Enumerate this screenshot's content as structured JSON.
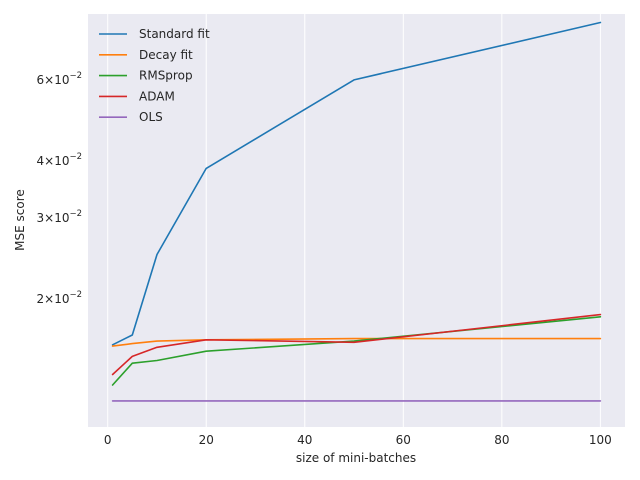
{
  "chart_data": {
    "type": "line",
    "xlabel": "size of mini-batches",
    "ylabel": "MSE score",
    "y_scale": "log",
    "grid": true,
    "legend_position": "top-left",
    "xlim": [
      -4,
      105
    ],
    "ylim": [
      0.01053,
      0.0835
    ],
    "x_ticks": [
      0,
      20,
      40,
      60,
      80,
      100
    ],
    "x_tick_labels": [
      "0",
      "20",
      "40",
      "60",
      "80",
      "100"
    ],
    "y_ticks": [
      0.02,
      0.03,
      0.04,
      0.06
    ],
    "y_tick_labels": [
      {
        "mantissa": "2",
        "exp": "−2"
      },
      {
        "mantissa": "3",
        "exp": "−2"
      },
      {
        "mantissa": "4",
        "exp": "−2"
      },
      {
        "mantissa": "6",
        "exp": "−2"
      }
    ],
    "x": [
      1,
      5,
      10,
      20,
      50,
      100
    ],
    "series": [
      {
        "name": "Standard fit",
        "color": "#1f77b4",
        "values": [
          0.0159,
          0.0167,
          0.025,
          0.0385,
          0.06,
          0.08
        ]
      },
      {
        "name": "Decay fit",
        "color": "#ff7f0e",
        "values": [
          0.0158,
          0.016,
          0.0162,
          0.0163,
          0.0164,
          0.0164
        ]
      },
      {
        "name": "RMSprop",
        "color": "#2ca02c",
        "values": [
          0.013,
          0.0145,
          0.0147,
          0.0154,
          0.0162,
          0.0183
        ]
      },
      {
        "name": "ADAM",
        "color": "#d62728",
        "values": [
          0.0137,
          0.015,
          0.0157,
          0.0163,
          0.0161,
          0.0185
        ]
      },
      {
        "name": "OLS",
        "color": "#9467bd",
        "values": [
          0.012,
          0.012,
          0.012,
          0.012,
          0.012,
          0.012
        ]
      }
    ]
  }
}
